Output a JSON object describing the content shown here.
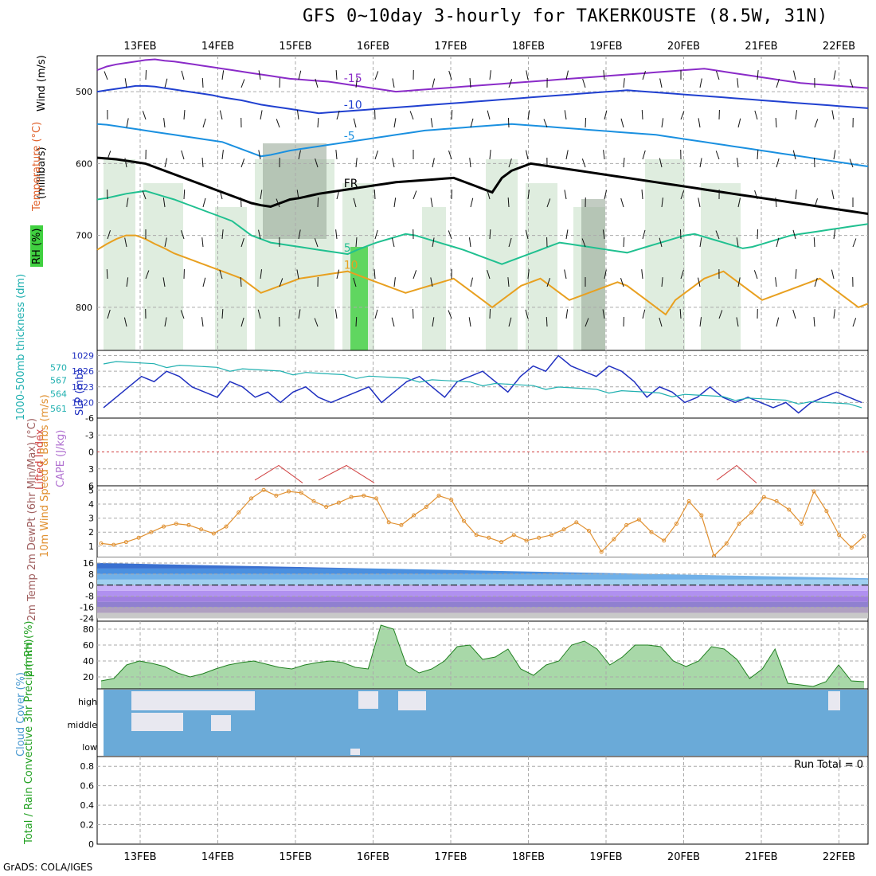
{
  "title": "GFS 0~10day 3-hourly for TAKERKOUSTE (8.5W, 31N)",
  "footer": "GrADS: COLA/IGES",
  "colors": {
    "temp_minus15": "#8a2bc8",
    "temp_minus10": "#2040d0",
    "temp_minus5": "#1a90e0",
    "freezing": "#000000",
    "temp_5": "#20c090",
    "temp_10": "#e8a020",
    "temp_15": "#e06010",
    "rh_high": "#40d040",
    "rh_mid": "#90b090",
    "slp": "#2030c0",
    "thickness": "#20b0b0",
    "lifted_index": "#d04040",
    "wind": "#e09030",
    "cloud": "#6aaad8",
    "cloud_gap": "#e8e8f0"
  },
  "chart_data": {
    "dates": [
      "13FEB",
      "14FEB",
      "15FEB",
      "16FEB",
      "17FEB",
      "18FEB",
      "19FEB",
      "20FEB",
      "21FEB",
      "22FEB"
    ],
    "panels": [
      {
        "name": "upper-air",
        "ylabel": "Wind (m/s)",
        "ylabel2": "Temperature (°C)",
        "ylabel3": "RH (%)",
        "ylabel4": "(millibars)",
        "yticks": [
          "500",
          "600",
          "700",
          "800"
        ],
        "contours": {
          "t_minus15": {
            "label": "-15",
            "values": [
              470,
              465,
              462,
              460,
              458,
              456,
              455,
              457,
              458,
              460,
              462,
              464,
              466,
              468,
              470,
              472,
              474,
              476,
              478,
              480,
              482,
              483,
              484,
              485,
              486,
              488,
              490,
              492,
              494,
              496,
              498,
              500,
              499,
              498,
              497,
              496,
              495,
              494,
              493,
              492,
              491,
              490,
              489,
              488,
              487,
              486,
              485,
              484,
              483,
              482,
              481,
              480,
              479,
              478,
              477,
              476,
              475,
              474,
              473,
              472,
              471,
              470,
              469,
              468,
              470,
              472,
              474,
              476,
              478,
              480,
              482,
              484,
              486,
              488,
              489,
              490,
              491,
              492,
              493,
              494,
              495
            ]
          },
          "t_minus10": {
            "label": "-10",
            "values": [
              500,
              498,
              496,
              494,
              492,
              492,
              493,
              495,
              497,
              499,
              501,
              503,
              505,
              508,
              510,
              512,
              515,
              518,
              520,
              522,
              524,
              526,
              528,
              530,
              529,
              528,
              527,
              526,
              525,
              524,
              523,
              522,
              521,
              520,
              519,
              518,
              517,
              516,
              515,
              514,
              513,
              512,
              511,
              510,
              509,
              508,
              507,
              506,
              505,
              504,
              503,
              502,
              501,
              500,
              499,
              498,
              499,
              500,
              501,
              502,
              503,
              504,
              505,
              506,
              507,
              508,
              509,
              510,
              511,
              512,
              513,
              514,
              515,
              516,
              517,
              518,
              519,
              520,
              521,
              522,
              523
            ]
          },
          "t_minus5": {
            "label": "-5",
            "values": [
              545,
              546,
              548,
              550,
              552,
              554,
              556,
              558,
              560,
              562,
              564,
              566,
              568,
              570,
              575,
              580,
              585,
              590,
              588,
              585,
              582,
              580,
              578,
              576,
              574,
              572,
              570,
              568,
              566,
              564,
              562,
              560,
              558,
              556,
              554,
              553,
              552,
              551,
              550,
              549,
              548,
              547,
              546,
              545,
              546,
              547,
              548,
              549,
              550,
              551,
              552,
              553,
              554,
              555,
              556,
              557,
              558,
              559,
              560,
              562,
              564,
              566,
              568,
              570,
              572,
              574,
              576,
              578,
              580,
              582,
              584,
              586,
              588,
              590,
              592,
              594,
              596,
              598,
              600,
              602,
              604
            ]
          },
          "freezing": {
            "label": "FR",
            "values": [
              592,
              593,
              594,
              596,
              598,
              600,
              605,
              610,
              615,
              620,
              625,
              630,
              635,
              640,
              645,
              650,
              655,
              658,
              660,
              655,
              650,
              648,
              645,
              642,
              640,
              638,
              636,
              634,
              632,
              630,
              628,
              626,
              625,
              624,
              623,
              622,
              621,
              620,
              625,
              630,
              635,
              640,
              620,
              610,
              605,
              600,
              602,
              604,
              606,
              608,
              610,
              612,
              614,
              616,
              618,
              620,
              622,
              624,
              626,
              628,
              630,
              632,
              634,
              636,
              638,
              640,
              642,
              644,
              646,
              648,
              650,
              652,
              654,
              656,
              658,
              660,
              662,
              664,
              666,
              668,
              670
            ]
          },
          "t_5": {
            "label": "5",
            "values": [
              650,
              648,
              645,
              642,
              640,
              638,
              642,
              646,
              650,
              655,
              660,
              665,
              670,
              675,
              680,
              690,
              700,
              705,
              710,
              712,
              714,
              716,
              718,
              720,
              722,
              724,
              726,
              720,
              715,
              710,
              706,
              702,
              698,
              700,
              704,
              708,
              712,
              716,
              720,
              725,
              730,
              735,
              740,
              735,
              730,
              725,
              720,
              715,
              710,
              712,
              714,
              716,
              718,
              720,
              722,
              724,
              720,
              716,
              712,
              708,
              704,
              700,
              698,
              702,
              706,
              710,
              714,
              718,
              716,
              712,
              708,
              704,
              700,
              698,
              696,
              694,
              692,
              690,
              688,
              686,
              684
            ]
          },
          "t_10": {
            "label": "10",
            "values": [
              720,
              712,
              705,
              700,
              700,
              705,
              712,
              718,
              725,
              730,
              735,
              740,
              745,
              750,
              755,
              760,
              770,
              780,
              775,
              770,
              765,
              760,
              758,
              756,
              754,
              752,
              750,
              755,
              760,
              765,
              770,
              775,
              780,
              776,
              772,
              768,
              764,
              760,
              770,
              780,
              790,
              800,
              790,
              780,
              770,
              765,
              760,
              770,
              780,
              790,
              785,
              780,
              775,
              770,
              765,
              770,
              780,
              790,
              800,
              810,
              790,
              780,
              770,
              760,
              755,
              750,
              760,
              770,
              780,
              790,
              785,
              780,
              775,
              770,
              765,
              760,
              770,
              780,
              790,
              800,
              795
            ]
          }
        }
      },
      {
        "name": "slp-thickness",
        "ylabel": "SLP (mb)",
        "ylabel2": "1000-500mb thickness (dm)",
        "yticks_left": [
          "570",
          "567",
          "564",
          "561"
        ],
        "yticks_right": [
          "1029",
          "1026",
          "1023",
          "1020"
        ],
        "slp": [
          1019,
          1021,
          1023,
          1025,
          1024,
          1026,
          1025,
          1023,
          1022,
          1021,
          1024,
          1023,
          1021,
          1022,
          1020,
          1022,
          1023,
          1021,
          1020,
          1021,
          1022,
          1023,
          1020,
          1022,
          1024,
          1025,
          1023,
          1021,
          1024,
          1025,
          1026,
          1024,
          1022,
          1025,
          1027,
          1026,
          1029,
          1027,
          1026,
          1025,
          1027,
          1026,
          1024,
          1021,
          1023,
          1022,
          1020,
          1021,
          1023,
          1021,
          1020,
          1021,
          1020,
          1019,
          1020,
          1018,
          1020,
          1021,
          1022,
          1021,
          1020
        ]
      },
      {
        "name": "stability",
        "ylabel": "Lifted Index",
        "ylabel2": "CAPE (J/kg)",
        "yticks": [
          "-6",
          "-3",
          "0",
          "3",
          "6"
        ]
      },
      {
        "name": "wind10m",
        "ylabel": "10m Wind Speed & Barbs (m/s)",
        "yticks": [
          "5",
          "4",
          "3",
          "2",
          "1"
        ]
      },
      {
        "name": "temp2m",
        "ylabel": "2m Temp 2m DewPt (6hr Min/Max) (°C)",
        "yticks": [
          "16",
          "8",
          "0",
          "-8",
          "-16",
          "-24"
        ]
      },
      {
        "name": "rh2m",
        "ylabel": "2m RH (%)",
        "yticks": [
          "80",
          "60",
          "40",
          "20"
        ]
      },
      {
        "name": "cloud",
        "ylabel": "Cloud Cover (%)",
        "levels": [
          "high",
          "middle",
          "low"
        ]
      },
      {
        "name": "precip",
        "ylabel": "Total / Rain Convective 3hr Precip (mm)",
        "yticks": [
          "0.8",
          "0.6",
          "0.4",
          "0.2",
          "0"
        ],
        "run_total": "Run Total = 0"
      }
    ]
  }
}
